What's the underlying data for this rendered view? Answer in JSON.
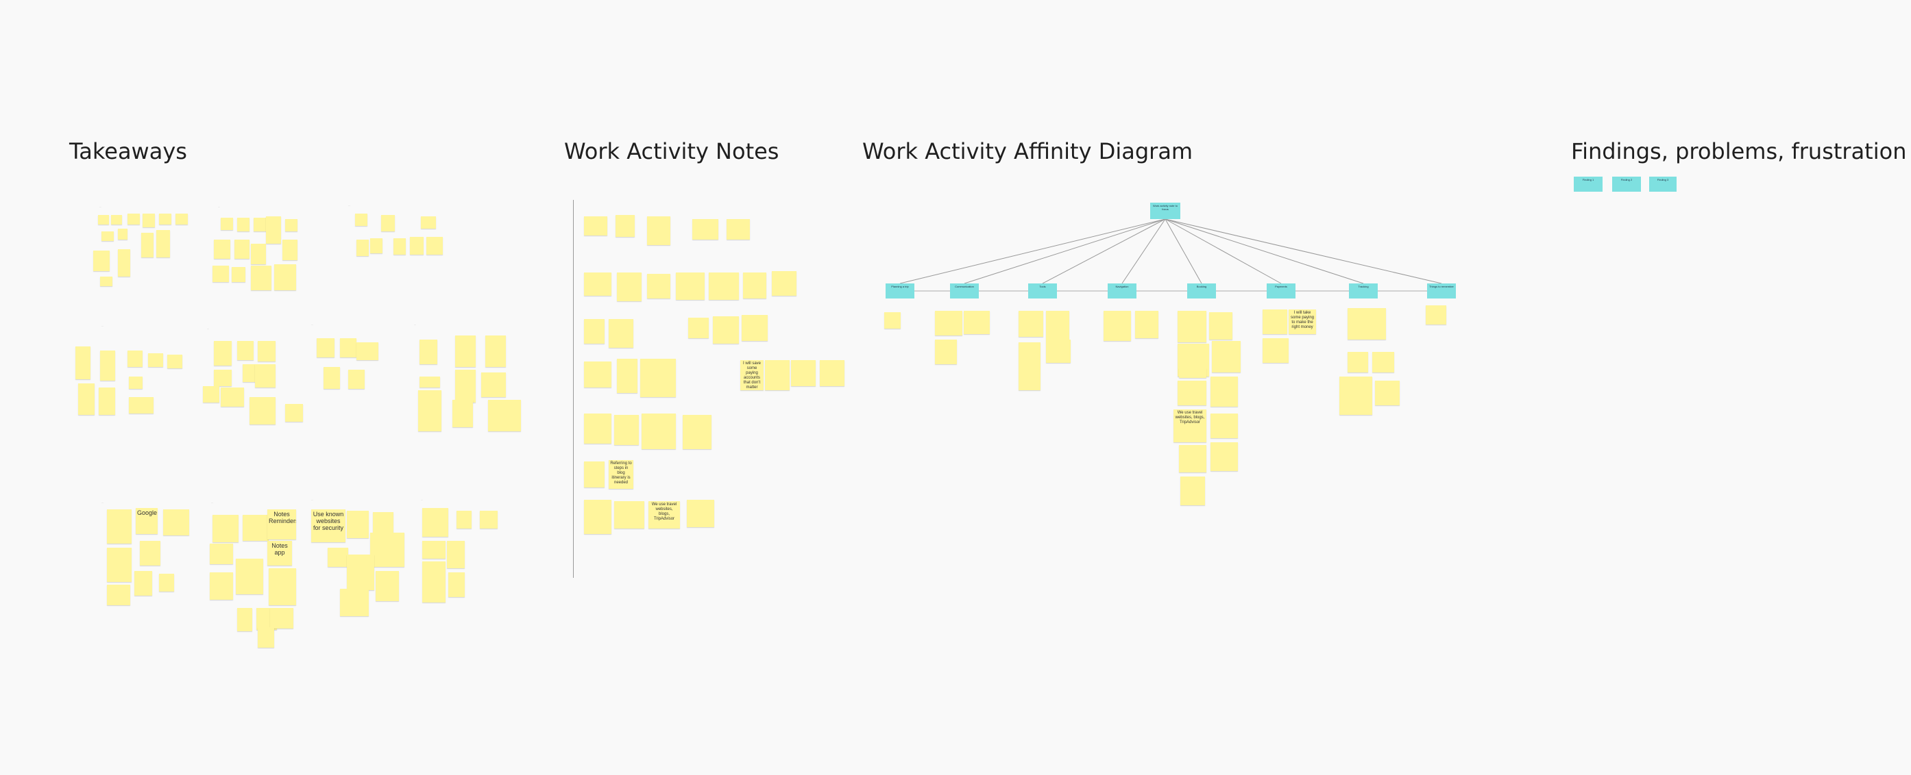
{
  "sections": {
    "takeaways": "Takeaways",
    "work_activity_notes": "Work Activity Notes",
    "affinity": "Work Activity Affinity Diagram",
    "findings": "Findings, problems, frustration"
  },
  "colors": {
    "sticky": "#fff59c",
    "cyan": "#7ee0e0",
    "background": "#f9f9f9"
  },
  "takeaways": {
    "legible_notes": [
      "Google",
      "Notes Reminders",
      "Notes app",
      "Use known websites for security"
    ]
  },
  "work_activity": {
    "legible_notes": [
      "I will save some paying accounts that don't matter",
      "We use travel websites, blogs, TripAdvisor",
      "Referring to steps in blog itinerary is needed"
    ]
  },
  "affinity": {
    "root": "Work activity note to focus",
    "categories": [
      "Planning a trip",
      "Communication",
      "Tools",
      "Navigation",
      "Booking",
      "Payments",
      "Tracking",
      "Things to remember"
    ],
    "legible_notes": [
      "We use travel websites, blogs, TripAdvisor",
      "I will take some paying to make the right money"
    ]
  },
  "findings": {
    "headers": [
      "Finding 1",
      "Finding 2",
      "Finding 3"
    ]
  }
}
